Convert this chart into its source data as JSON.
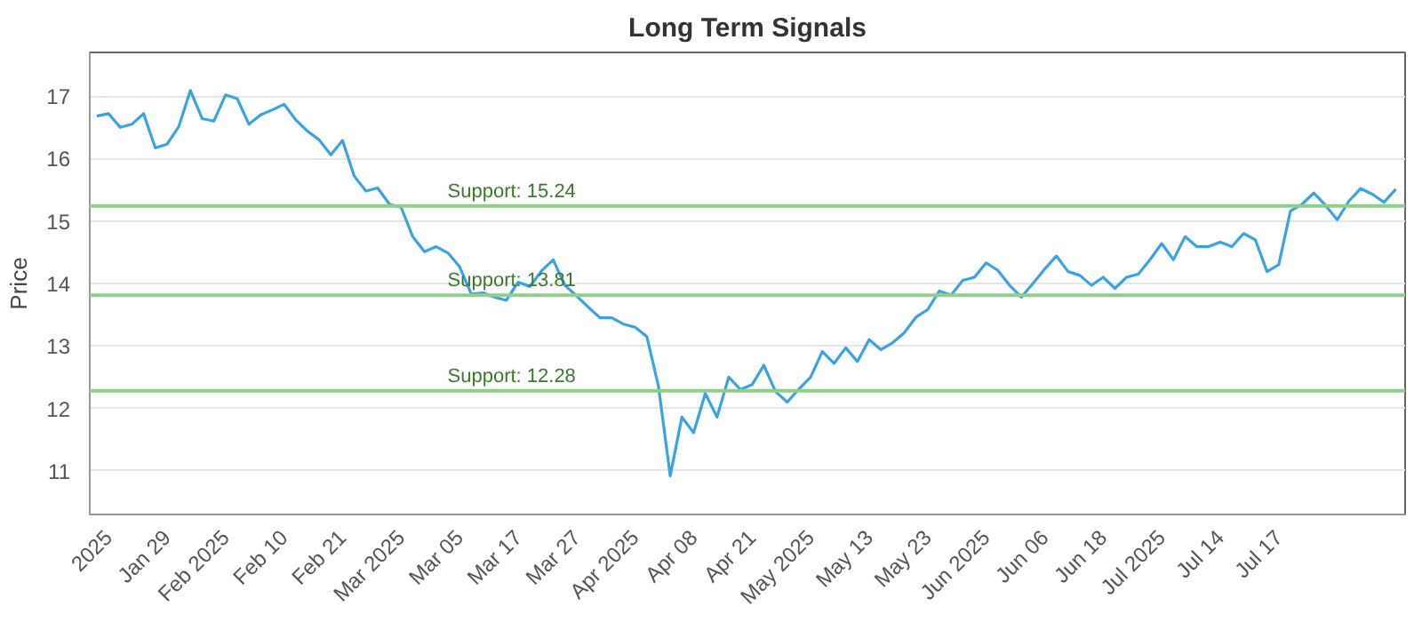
{
  "chart_data": {
    "type": "line",
    "title": "Long Term Signals",
    "ylabel": "Price",
    "categories": [
      null,
      "2025",
      null,
      null,
      null,
      null,
      "Jan 29",
      null,
      null,
      null,
      null,
      "Feb 2025",
      null,
      null,
      null,
      null,
      "Feb 10",
      null,
      null,
      null,
      null,
      "Feb 21",
      null,
      null,
      null,
      null,
      "Mar 2025",
      null,
      null,
      null,
      null,
      "Mar 05",
      null,
      null,
      null,
      null,
      "Mar 17",
      null,
      null,
      null,
      null,
      "Mar 27",
      null,
      null,
      null,
      null,
      "Apr 2025",
      null,
      null,
      null,
      null,
      "Apr 08",
      null,
      null,
      null,
      null,
      "Apr 21",
      null,
      null,
      null,
      null,
      "May 2025",
      null,
      null,
      null,
      null,
      "May 13",
      null,
      null,
      null,
      null,
      "May 23",
      null,
      null,
      null,
      null,
      "Jun 2025",
      null,
      null,
      null,
      null,
      "Jun 06",
      null,
      null,
      null,
      null,
      "Jun 18",
      null,
      null,
      null,
      null,
      "Jul 2025",
      null,
      null,
      null,
      null,
      "Jul 14",
      null,
      null,
      null,
      null,
      "Jul 17",
      null,
      null,
      null,
      null,
      null,
      null,
      null,
      null,
      null,
      null
    ],
    "series": [
      {
        "color": "#3aa3e3",
        "values": [
          16.68,
          16.72,
          16.5,
          16.55,
          16.72,
          16.17,
          16.23,
          16.51,
          17.09,
          16.64,
          16.6,
          17.02,
          16.96,
          16.55,
          16.7,
          16.78,
          16.87,
          16.62,
          16.44,
          16.3,
          16.06,
          16.29,
          15.72,
          15.48,
          15.53,
          15.27,
          15.22,
          14.75,
          14.51,
          14.59,
          14.49,
          14.27,
          13.83,
          13.85,
          13.78,
          13.73,
          14.02,
          13.95,
          14.2,
          14.38,
          13.97,
          13.8,
          13.62,
          13.45,
          13.45,
          13.35,
          13.3,
          13.15,
          12.35,
          10.92,
          11.86,
          11.61,
          12.24,
          11.86,
          12.5,
          12.3,
          12.38,
          12.69,
          12.27,
          12.1,
          12.31,
          12.5,
          12.91,
          12.72,
          12.97,
          12.75,
          13.1,
          12.94,
          13.05,
          13.21,
          13.46,
          13.58,
          13.88,
          13.81,
          14.05,
          14.1,
          14.33,
          14.21,
          13.97,
          13.78,
          14.0,
          14.23,
          14.44,
          14.19,
          14.13,
          13.97,
          14.1,
          13.92,
          14.1,
          14.15,
          14.38,
          14.64,
          14.38,
          14.75,
          14.59,
          14.59,
          14.66,
          14.59,
          14.8,
          14.7,
          14.19,
          14.3,
          15.16,
          15.27,
          15.45,
          15.25,
          15.02,
          15.32,
          15.52,
          15.43,
          15.3,
          15.51
        ]
      }
    ],
    "ylim": [
      10.3,
      17.7
    ],
    "yticks": [
      11,
      12,
      13,
      14,
      15,
      16,
      17
    ],
    "ref_lines": [
      {
        "axis": "y",
        "value": 15.24,
        "label": "Support: 15.24",
        "color": "#8fcf8a"
      },
      {
        "axis": "y",
        "value": 13.81,
        "label": "Support: 13.81",
        "color": "#8fcf8a"
      },
      {
        "axis": "y",
        "value": 12.28,
        "label": "Support: 12.28",
        "color": "#8fcf8a"
      }
    ],
    "grid": "y",
    "marker": "none",
    "line_style": "solid"
  }
}
